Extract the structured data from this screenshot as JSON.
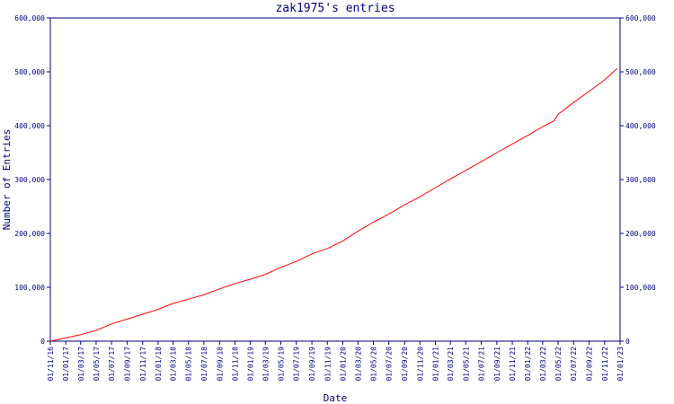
{
  "chart_data": {
    "type": "line",
    "title": "zak1975's entries",
    "xlabel": "Date",
    "ylabel": "Number of Entries",
    "ylim": [
      0,
      600000
    ],
    "y_ticks": [
      0,
      100000,
      200000,
      300000,
      400000,
      500000,
      600000
    ],
    "y_tick_labels": [
      "0",
      "100,000",
      "200,000",
      "300,000",
      "400,000",
      "500,000",
      "600,000"
    ],
    "x_range": [
      "2016-11-01",
      "2023-01-01"
    ],
    "x_ticks": [
      "2016-11-01",
      "2017-01-01",
      "2017-03-01",
      "2017-05-01",
      "2017-07-01",
      "2017-09-01",
      "2017-11-01",
      "2018-01-01",
      "2018-03-01",
      "2018-05-01",
      "2018-07-01",
      "2018-09-01",
      "2018-11-01",
      "2019-01-01",
      "2019-03-01",
      "2019-05-01",
      "2019-07-01",
      "2019-09-01",
      "2019-11-01",
      "2020-01-01",
      "2020-03-01",
      "2020-05-01",
      "2020-07-01",
      "2020-09-01",
      "2020-11-01",
      "2021-01-01",
      "2021-03-01",
      "2021-05-01",
      "2021-07-01",
      "2021-09-01",
      "2021-11-01",
      "2022-01-01",
      "2022-03-01",
      "2022-05-01",
      "2022-07-01",
      "2022-09-01",
      "2022-11-01",
      "2023-01-01"
    ],
    "x_tick_labels": [
      "01/11/16",
      "01/01/17",
      "01/03/17",
      "01/05/17",
      "01/07/17",
      "01/09/17",
      "01/11/17",
      "01/01/18",
      "01/03/18",
      "01/05/18",
      "01/07/18",
      "01/09/18",
      "01/11/18",
      "01/01/19",
      "01/03/19",
      "01/05/19",
      "01/07/19",
      "01/09/19",
      "01/11/19",
      "01/01/20",
      "01/03/20",
      "01/05/20",
      "01/07/20",
      "01/09/20",
      "01/11/20",
      "01/01/21",
      "01/03/21",
      "01/05/21",
      "01/07/21",
      "01/09/21",
      "01/11/21",
      "01/01/22",
      "01/03/22",
      "01/05/22",
      "01/07/22",
      "01/09/22",
      "01/11/22",
      "01/01/23"
    ],
    "series": [
      {
        "color": "#ff0000",
        "x": [
          "2016-11-01",
          "2017-01-01",
          "2017-03-01",
          "2017-05-01",
          "2017-07-01",
          "2017-09-01",
          "2017-11-01",
          "2018-01-01",
          "2018-03-01",
          "2018-05-01",
          "2018-07-01",
          "2018-09-01",
          "2018-11-01",
          "2019-01-01",
          "2019-03-01",
          "2019-05-01",
          "2019-07-01",
          "2019-09-01",
          "2019-11-01",
          "2020-01-01",
          "2020-03-01",
          "2020-05-01",
          "2020-07-01",
          "2020-09-01",
          "2020-11-01",
          "2021-01-01",
          "2021-03-01",
          "2021-05-01",
          "2021-07-01",
          "2021-09-01",
          "2021-11-01",
          "2022-01-01",
          "2022-03-01",
          "2022-04-15",
          "2022-05-01",
          "2022-07-01",
          "2022-09-01",
          "2022-11-01",
          "2022-12-20"
        ],
        "values": [
          0,
          6000,
          12000,
          20000,
          32000,
          41000,
          50000,
          59000,
          70000,
          78000,
          86000,
          97000,
          107000,
          115000,
          124000,
          137000,
          148000,
          162000,
          172000,
          186000,
          204000,
          221000,
          236000,
          253000,
          268000,
          285000,
          301000,
          317000,
          333000,
          350000,
          366000,
          382000,
          398000,
          409000,
          421000,
          443000,
          464000,
          485000,
          506000
        ]
      }
    ],
    "axis_color": "#000080",
    "grid": false,
    "legend": "none"
  }
}
